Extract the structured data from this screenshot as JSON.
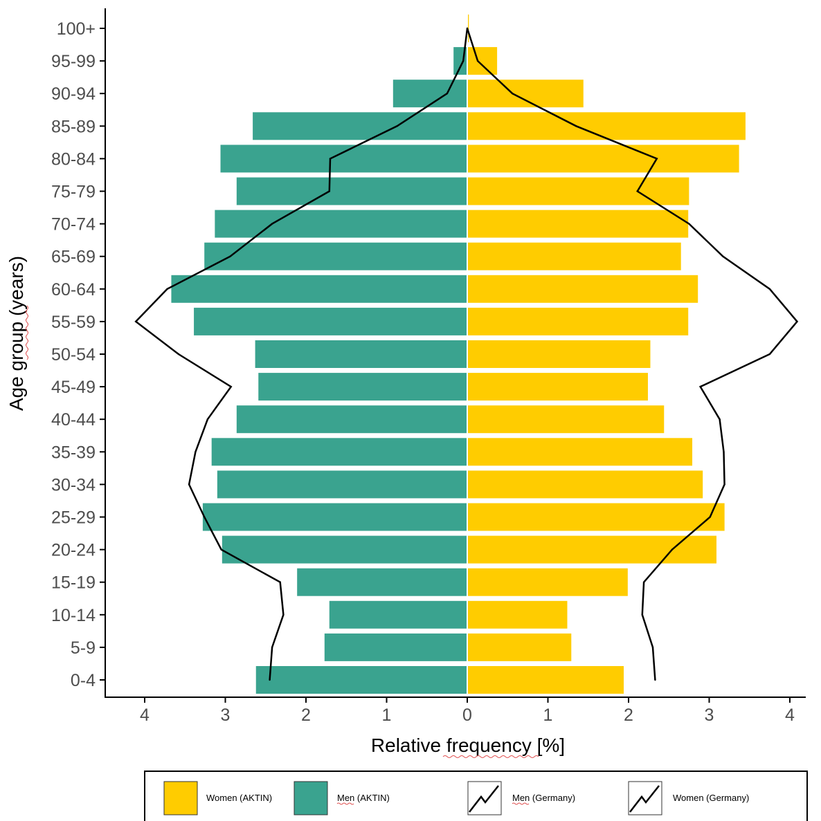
{
  "chart_data": {
    "type": "bar",
    "orientation": "horizontal",
    "xlabel": "Relative frequency [%]",
    "ylabel": "Age group (years)",
    "xlim": [
      -4.5,
      4.5
    ],
    "x_ticks": [
      -4,
      -3,
      -2,
      -1,
      0,
      1,
      2,
      3,
      4
    ],
    "x_tick_labels": [
      "4",
      "3",
      "2",
      "1",
      "0",
      "1",
      "2",
      "3",
      "4"
    ],
    "categories": [
      "0-4",
      "5-9",
      "10-14",
      "15-19",
      "20-24",
      "25-29",
      "30-34",
      "35-39",
      "40-44",
      "45-49",
      "50-54",
      "55-59",
      "60-64",
      "65-69",
      "70-74",
      "75-79",
      "80-84",
      "85-89",
      "90-94",
      "95-99",
      "100+"
    ],
    "series": [
      {
        "name": "Women (AKTIN)",
        "kind": "bar",
        "side": "right",
        "color": "#FFCC00",
        "values": [
          1.94,
          1.29,
          1.24,
          1.99,
          3.09,
          3.19,
          2.92,
          2.79,
          2.44,
          2.24,
          2.27,
          2.74,
          2.86,
          2.65,
          2.74,
          2.75,
          3.37,
          3.45,
          1.44,
          0.37,
          0.02
        ]
      },
      {
        "name": "Men (AKTIN)",
        "kind": "bar",
        "side": "left",
        "color": "#3AA38F",
        "values": [
          2.62,
          1.77,
          1.71,
          2.11,
          3.04,
          3.28,
          3.1,
          3.17,
          2.86,
          2.59,
          2.63,
          3.39,
          3.67,
          3.26,
          3.13,
          2.86,
          3.06,
          2.66,
          0.92,
          0.17,
          0.0
        ]
      },
      {
        "name": "Men (Germany)",
        "kind": "line",
        "side": "left",
        "color": "#000000",
        "values": [
          2.45,
          2.42,
          2.28,
          2.32,
          3.05,
          3.26,
          3.45,
          3.37,
          3.22,
          2.93,
          3.58,
          4.11,
          3.72,
          2.94,
          2.42,
          1.71,
          1.7,
          0.87,
          0.25,
          0.05,
          0.0
        ]
      },
      {
        "name": "Women (Germany)",
        "kind": "line",
        "side": "right",
        "color": "#000000",
        "values": [
          2.33,
          2.3,
          2.17,
          2.19,
          2.54,
          3.01,
          3.19,
          3.18,
          3.13,
          2.89,
          3.75,
          4.09,
          3.75,
          3.17,
          2.75,
          2.11,
          2.35,
          1.35,
          0.56,
          0.13,
          0.0
        ]
      }
    ],
    "legend": {
      "placement": "bottom",
      "entries": [
        {
          "label": "Women (AKTIN)",
          "symbol": "box",
          "color": "#FFCC00"
        },
        {
          "label": "Men (AKTIN)",
          "symbol": "box",
          "color": "#3AA38F"
        },
        {
          "label": "Men (Germany)",
          "symbol": "line",
          "color": "#000000"
        },
        {
          "label": "Women (Germany)",
          "symbol": "line",
          "color": "#000000"
        }
      ]
    },
    "grid": false
  }
}
